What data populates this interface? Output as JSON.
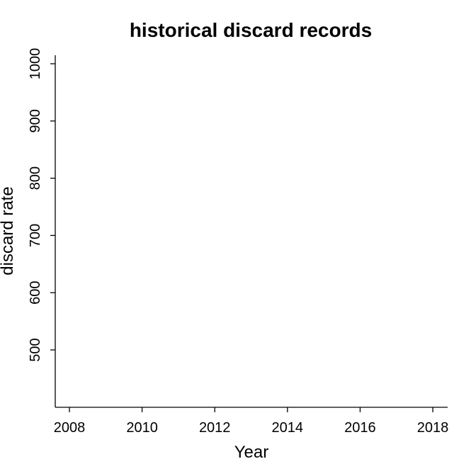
{
  "chart_data": {
    "type": "line",
    "title": "historical discard records",
    "xlabel": "Year",
    "ylabel": "discard rate",
    "xlim": [
      2007.6,
      2018.4
    ],
    "ylim": [
      400,
      1015
    ],
    "x_ticks": [
      2008,
      2010,
      2012,
      2014,
      2016,
      2018
    ],
    "y_ticks": [
      500,
      600,
      700,
      800,
      900,
      1000
    ],
    "series": [],
    "grid": false
  }
}
